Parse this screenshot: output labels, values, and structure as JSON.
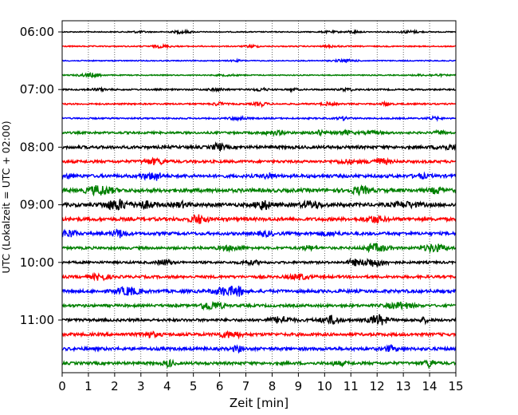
{
  "chart_data": {
    "type": "line",
    "title": "",
    "xlabel": "Zeit  [min]",
    "ylabel": "UTC (Lokalzeit = UTC + 02:00)",
    "xlim": [
      0,
      15
    ],
    "x_ticks": [
      "0",
      "1",
      "2",
      "3",
      "4",
      "5",
      "6",
      "7",
      "8",
      "9",
      "10",
      "11",
      "12",
      "13",
      "14",
      "15"
    ],
    "y_ticks": [
      "06:00",
      "07:00",
      "08:00",
      "09:00",
      "10:00",
      "11:00"
    ],
    "y_tick_rows": [
      0,
      4,
      8,
      12,
      16,
      20
    ],
    "grid": "vertical-dotted",
    "row_minutes": 15,
    "rows": [
      {
        "start": "06:00",
        "color": "#000000",
        "amp": 0.6
      },
      {
        "start": "06:15",
        "color": "#ff0000",
        "amp": 0.7
      },
      {
        "start": "06:30",
        "color": "#0000ff",
        "amp": 0.6
      },
      {
        "start": "06:45",
        "color": "#008000",
        "amp": 0.6
      },
      {
        "start": "07:00",
        "color": "#000000",
        "amp": 0.9
      },
      {
        "start": "07:15",
        "color": "#ff0000",
        "amp": 0.9
      },
      {
        "start": "07:30",
        "color": "#0000ff",
        "amp": 0.9
      },
      {
        "start": "07:45",
        "color": "#008000",
        "amp": 1.3
      },
      {
        "start": "08:00",
        "color": "#000000",
        "amp": 1.8
      },
      {
        "start": "08:15",
        "color": "#ff0000",
        "amp": 1.6
      },
      {
        "start": "08:30",
        "color": "#0000ff",
        "amp": 1.9
      },
      {
        "start": "08:45",
        "color": "#008000",
        "amp": 2.2
      },
      {
        "start": "09:00",
        "color": "#000000",
        "amp": 2.2
      },
      {
        "start": "09:15",
        "color": "#ff0000",
        "amp": 2.0
      },
      {
        "start": "09:30",
        "color": "#0000ff",
        "amp": 1.8
      },
      {
        "start": "09:45",
        "color": "#008000",
        "amp": 1.5
      },
      {
        "start": "10:00",
        "color": "#000000",
        "amp": 1.4
      },
      {
        "start": "10:15",
        "color": "#ff0000",
        "amp": 1.6
      },
      {
        "start": "10:30",
        "color": "#0000ff",
        "amp": 1.9
      },
      {
        "start": "10:45",
        "color": "#008000",
        "amp": 1.6
      },
      {
        "start": "11:00",
        "color": "#000000",
        "amp": 1.6
      },
      {
        "start": "11:15",
        "color": "#ff0000",
        "amp": 1.8
      },
      {
        "start": "11:30",
        "color": "#0000ff",
        "amp": 1.9
      },
      {
        "start": "11:45",
        "color": "#008000",
        "amp": 1.7
      }
    ]
  }
}
